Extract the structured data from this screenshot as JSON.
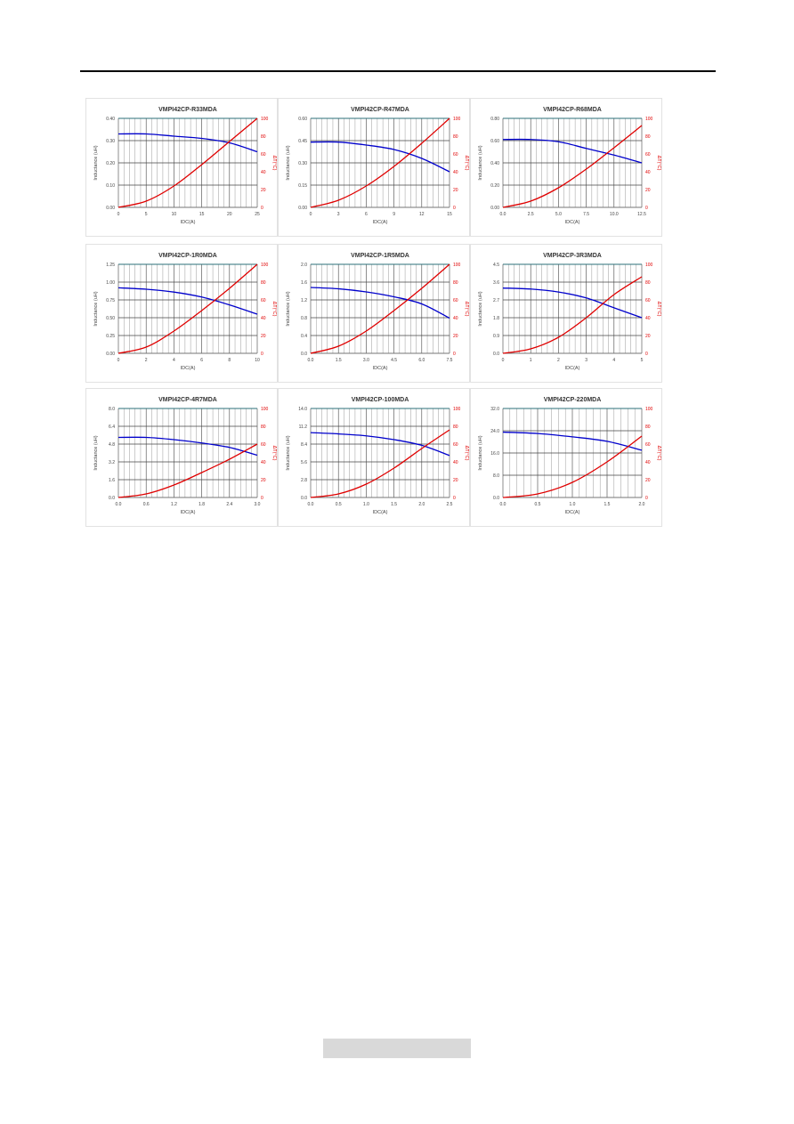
{
  "page": {
    "footer_text": ""
  },
  "colors": {
    "inductance": "#0000cc",
    "temp_rise": "#e00000",
    "grid": "#444444",
    "minor_grid": "#9a9a9a",
    "frame": "#2b6f7a"
  },
  "chart_data": [
    {
      "type": "line",
      "title": "VMPI42CP-R33MDA",
      "xlabel": "IDC(A)",
      "ylabel": "Inductance (uH)",
      "y2label": "ΔT(°C)",
      "xlim": [
        0,
        25
      ],
      "xticks": [
        0,
        5,
        10,
        15,
        20,
        25
      ],
      "xtick_labels": [
        "0",
        "5",
        "10",
        "15",
        "20",
        "25"
      ],
      "ylim": [
        0,
        0.4
      ],
      "yticks": [
        0,
        0.1,
        0.2,
        0.3,
        0.4
      ],
      "ytick_labels": [
        "0.00",
        "0.10",
        "0.20",
        "0.30",
        "0.40"
      ],
      "y2lim": [
        0,
        100
      ],
      "y2ticks": [
        0,
        20,
        40,
        60,
        80,
        100
      ],
      "series": [
        {
          "axis": "left",
          "x": [
            0,
            5,
            10,
            15,
            20,
            25
          ],
          "values": [
            0.33,
            0.33,
            0.32,
            0.31,
            0.29,
            0.25
          ]
        },
        {
          "axis": "right",
          "x": [
            0,
            5,
            10,
            15,
            20,
            25
          ],
          "values": [
            0,
            7,
            24,
            48,
            74,
            100
          ]
        }
      ]
    },
    {
      "type": "line",
      "title": "VMPI42CP-R47MDA",
      "xlabel": "IDC(A)",
      "ylabel": "Inductance (uH)",
      "y2label": "ΔT(°C)",
      "xlim": [
        0,
        15
      ],
      "xticks": [
        0,
        3,
        6,
        9,
        12,
        15
      ],
      "xtick_labels": [
        "0",
        "3",
        "6",
        "9",
        "12",
        "15"
      ],
      "ylim": [
        0,
        0.6
      ],
      "yticks": [
        0,
        0.15,
        0.3,
        0.45,
        0.6
      ],
      "ytick_labels": [
        "0.00",
        "0.15",
        "0.30",
        "0.45",
        "0.60"
      ],
      "y2lim": [
        0,
        100
      ],
      "y2ticks": [
        0,
        20,
        40,
        60,
        80,
        100
      ],
      "series": [
        {
          "axis": "left",
          "x": [
            0,
            3,
            6,
            9,
            12,
            15
          ],
          "values": [
            0.44,
            0.44,
            0.42,
            0.39,
            0.33,
            0.24
          ]
        },
        {
          "axis": "right",
          "x": [
            0,
            3,
            6,
            9,
            12,
            15
          ],
          "values": [
            0,
            8,
            24,
            46,
            72,
            100
          ]
        }
      ]
    },
    {
      "type": "line",
      "title": "VMPI42CP-R68MDA",
      "xlabel": "IDC(A)",
      "ylabel": "Inductance (uH)",
      "y2label": "ΔT(°C)",
      "xlim": [
        0,
        12.5
      ],
      "xticks": [
        0,
        2.5,
        5.0,
        7.5,
        10.0,
        12.5
      ],
      "xtick_labels": [
        "0.0",
        "2.5",
        "5.0",
        "7.5",
        "10.0",
        "12.5"
      ],
      "ylim": [
        0,
        0.8
      ],
      "yticks": [
        0,
        0.2,
        0.4,
        0.6,
        0.8
      ],
      "ytick_labels": [
        "0.00",
        "0.20",
        "0.40",
        "0.60",
        "0.80"
      ],
      "y2lim": [
        0,
        100
      ],
      "y2ticks": [
        0,
        20,
        40,
        60,
        80,
        100
      ],
      "series": [
        {
          "axis": "left",
          "x": [
            0,
            2.5,
            5.0,
            7.5,
            10.0,
            12.5
          ],
          "values": [
            0.61,
            0.61,
            0.59,
            0.53,
            0.47,
            0.4
          ]
        },
        {
          "axis": "right",
          "x": [
            0,
            2.5,
            5.0,
            7.5,
            10.0,
            12.5
          ],
          "values": [
            0,
            7,
            22,
            43,
            67,
            92
          ]
        }
      ]
    },
    {
      "type": "line",
      "title": "VMPI42CP-1R0MDA",
      "xlabel": "IDC(A)",
      "ylabel": "Inductance (uH)",
      "y2label": "ΔT(°C)",
      "xlim": [
        0,
        10
      ],
      "xticks": [
        0,
        2,
        4,
        6,
        8,
        10
      ],
      "xtick_labels": [
        "0",
        "2",
        "4",
        "6",
        "8",
        "10"
      ],
      "ylim": [
        0,
        1.25
      ],
      "yticks": [
        0,
        0.25,
        0.5,
        0.75,
        1.0,
        1.25
      ],
      "ytick_labels": [
        "0.00",
        "0.25",
        "0.50",
        "0.75",
        "1.00",
        "1.25"
      ],
      "y2lim": [
        0,
        100
      ],
      "y2ticks": [
        0,
        20,
        40,
        60,
        80,
        100
      ],
      "series": [
        {
          "axis": "left",
          "x": [
            0,
            2,
            4,
            6,
            8,
            10
          ],
          "values": [
            0.92,
            0.9,
            0.86,
            0.79,
            0.68,
            0.55
          ]
        },
        {
          "axis": "right",
          "x": [
            0,
            2,
            4,
            6,
            8,
            10
          ],
          "values": [
            0,
            7,
            25,
            48,
            73,
            100
          ]
        }
      ]
    },
    {
      "type": "line",
      "title": "VMPI42CP-1R5MDA",
      "xlabel": "IDC(A)",
      "ylabel": "Inductance (uH)",
      "y2label": "ΔT(°C)",
      "xlim": [
        0,
        7.5
      ],
      "xticks": [
        0,
        1.5,
        3.0,
        4.5,
        6.0,
        7.5
      ],
      "xtick_labels": [
        "0.0",
        "1.5",
        "3.0",
        "4.5",
        "6.0",
        "7.5"
      ],
      "ylim": [
        0,
        2.0
      ],
      "yticks": [
        0,
        0.4,
        0.8,
        1.2,
        1.6,
        2.0
      ],
      "ytick_labels": [
        "0.0",
        "0.4",
        "0.8",
        "1.2",
        "1.6",
        "2.0"
      ],
      "y2lim": [
        0,
        100
      ],
      "y2ticks": [
        0,
        20,
        40,
        60,
        80,
        100
      ],
      "series": [
        {
          "axis": "left",
          "x": [
            0,
            1.5,
            3.0,
            4.5,
            6.0,
            7.5
          ],
          "values": [
            1.48,
            1.45,
            1.38,
            1.27,
            1.11,
            0.79
          ]
        },
        {
          "axis": "right",
          "x": [
            0,
            1.5,
            3.0,
            4.5,
            6.0,
            7.5
          ],
          "values": [
            0,
            8,
            25,
            48,
            73,
            100
          ]
        }
      ]
    },
    {
      "type": "line",
      "title": "VMPI42CP-3R3MDA",
      "xlabel": "IDC(A)",
      "ylabel": "Inductance (uH)",
      "y2label": "ΔT(°C)",
      "xlim": [
        0,
        5
      ],
      "xticks": [
        0,
        1,
        2,
        3,
        4,
        5
      ],
      "xtick_labels": [
        "0",
        "1",
        "2",
        "3",
        "4",
        "5"
      ],
      "ylim": [
        0,
        4.5
      ],
      "yticks": [
        0,
        0.9,
        1.8,
        2.7,
        3.6,
        4.5
      ],
      "ytick_labels": [
        "0.0",
        "0.9",
        "1.8",
        "2.7",
        "3.6",
        "4.5"
      ],
      "y2lim": [
        0,
        100
      ],
      "y2ticks": [
        0,
        20,
        40,
        60,
        80,
        100
      ],
      "series": [
        {
          "axis": "left",
          "x": [
            0,
            1,
            2,
            3,
            4,
            5
          ],
          "values": [
            3.3,
            3.25,
            3.1,
            2.8,
            2.3,
            1.8
          ]
        },
        {
          "axis": "right",
          "x": [
            0,
            1,
            2,
            3,
            4,
            5
          ],
          "values": [
            0,
            5,
            18,
            40,
            66,
            86
          ]
        }
      ]
    },
    {
      "type": "line",
      "title": "VMPI42CP-4R7MDA",
      "xlabel": "IDC(A)",
      "ylabel": "Inductance (uH)",
      "y2label": "ΔT(°C)",
      "xlim": [
        0,
        3.0
      ],
      "xticks": [
        0,
        0.6,
        1.2,
        1.8,
        2.4,
        3.0
      ],
      "xtick_labels": [
        "0.0",
        "0.6",
        "1.2",
        "1.8",
        "2.4",
        "3.0"
      ],
      "ylim": [
        0,
        8.0
      ],
      "yticks": [
        0,
        1.6,
        3.2,
        4.8,
        6.4,
        8.0
      ],
      "ytick_labels": [
        "0.0",
        "1.6",
        "3.2",
        "4.8",
        "6.4",
        "8.0"
      ],
      "y2lim": [
        0,
        100
      ],
      "y2ticks": [
        0,
        20,
        40,
        60,
        80,
        100
      ],
      "series": [
        {
          "axis": "left",
          "x": [
            0,
            0.6,
            1.2,
            1.8,
            2.4,
            3.0
          ],
          "values": [
            5.4,
            5.4,
            5.2,
            4.9,
            4.5,
            3.8
          ]
        },
        {
          "axis": "right",
          "x": [
            0,
            0.6,
            1.2,
            1.8,
            2.4,
            3.0
          ],
          "values": [
            0,
            4,
            14,
            28,
            43,
            60
          ]
        }
      ]
    },
    {
      "type": "line",
      "title": "VMPI42CP-100MDA",
      "xlabel": "IDC(A)",
      "ylabel": "Inductance (uH)",
      "y2label": "ΔT(°C)",
      "xlim": [
        0,
        2.5
      ],
      "xticks": [
        0,
        0.5,
        1.0,
        1.5,
        2.0,
        2.5
      ],
      "xtick_labels": [
        "0.0",
        "0.5",
        "1.0",
        "1.5",
        "2.0",
        "2.5"
      ],
      "ylim": [
        0,
        14.0
      ],
      "yticks": [
        0,
        2.8,
        5.6,
        8.4,
        11.2,
        14.0
      ],
      "ytick_labels": [
        "0.0",
        "2.8",
        "5.6",
        "8.4",
        "11.2",
        "14.0"
      ],
      "y2lim": [
        0,
        100
      ],
      "y2ticks": [
        0,
        20,
        40,
        60,
        80,
        100
      ],
      "series": [
        {
          "axis": "left",
          "x": [
            0,
            0.5,
            1.0,
            1.5,
            2.0,
            2.5
          ],
          "values": [
            10.2,
            10.0,
            9.7,
            9.1,
            8.2,
            6.6
          ]
        },
        {
          "axis": "right",
          "x": [
            0,
            0.5,
            1.0,
            1.5,
            2.0,
            2.5
          ],
          "values": [
            0,
            4,
            15,
            33,
            55,
            76
          ]
        }
      ]
    },
    {
      "type": "line",
      "title": "VMPI42CP-220MDA",
      "xlabel": "IDC(A)",
      "ylabel": "Inductance (uH)",
      "y2label": "ΔT(°C)",
      "xlim": [
        0,
        2.0
      ],
      "xticks": [
        0,
        0.5,
        1.0,
        1.5,
        2.0
      ],
      "xtick_labels": [
        "0.0",
        "0.5",
        "1.0",
        "1.5",
        "2.0"
      ],
      "ylim": [
        0,
        32.0
      ],
      "yticks": [
        0,
        8.0,
        16.0,
        24.0,
        32.0
      ],
      "ytick_labels": [
        "0.0",
        "8.0",
        "16.0",
        "24.0",
        "32.0"
      ],
      "y2lim": [
        0,
        100
      ],
      "y2ticks": [
        0,
        20,
        40,
        60,
        80,
        100
      ],
      "series": [
        {
          "axis": "left",
          "x": [
            0,
            0.5,
            1.0,
            1.5,
            2.0
          ],
          "values": [
            23.5,
            23.0,
            21.8,
            20.2,
            17.0
          ]
        },
        {
          "axis": "right",
          "x": [
            0,
            0.5,
            1.0,
            1.5,
            2.0
          ],
          "values": [
            0,
            4,
            17,
            40,
            69
          ]
        }
      ]
    }
  ]
}
